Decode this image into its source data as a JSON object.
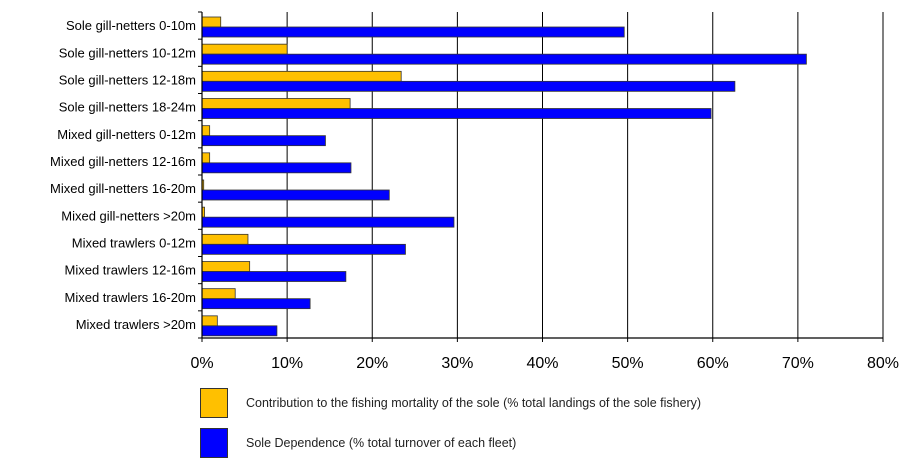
{
  "chart_data": {
    "type": "bar",
    "orientation": "horizontal",
    "categories": [
      "Sole gill-netters 0-10m",
      "Sole gill-netters 10-12m",
      "Sole gill-netters 12-18m",
      "Sole gill-netters 18-24m",
      "Mixed gill-netters 0-12m",
      "Mixed gill-netters 12-16m",
      "Mixed gill-netters 16-20m",
      "Mixed gill-netters >20m",
      "Mixed trawlers 0-12m",
      "Mixed trawlers 12-16m",
      "Mixed trawlers 16-20m",
      "Mixed trawlers >20m"
    ],
    "series": [
      {
        "name": "Contribution to the fishing mortality of the sole (% total landings of the sole fishery)",
        "color": "#FFC000",
        "values": [
          2.2,
          10.0,
          23.4,
          17.4,
          0.9,
          0.9,
          0.2,
          0.3,
          5.4,
          5.6,
          3.9,
          1.8
        ]
      },
      {
        "name": "Sole Dependence (% total turnover of each fleet)",
        "color": "#0000FF",
        "values": [
          49.6,
          71.0,
          62.6,
          59.8,
          14.5,
          17.5,
          22.0,
          29.6,
          23.9,
          16.9,
          12.7,
          8.8
        ]
      }
    ],
    "xlim": [
      0,
      80
    ],
    "xticks": [
      0,
      10,
      20,
      30,
      40,
      50,
      60,
      70,
      80
    ],
    "tick_labels": [
      "0%",
      "10%",
      "20%",
      "30%",
      "40%",
      "50%",
      "60%",
      "70%",
      "80%"
    ],
    "grid": "vertical",
    "legend": "bottom",
    "title": "",
    "xlabel": "",
    "ylabel": ""
  }
}
